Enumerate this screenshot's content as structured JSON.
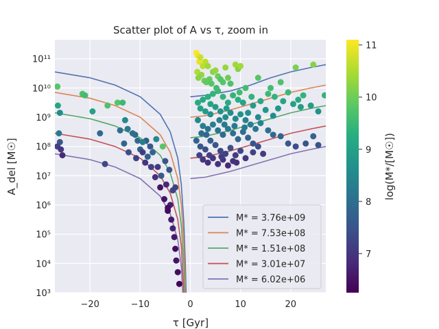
{
  "chart_data": {
    "type": "scatter",
    "title": "Scatter plot of A vs τ, zoom in",
    "xlabel": "τ [Gyr]",
    "ylabel": "A_del [M☉]",
    "xlim": [
      -27,
      27
    ],
    "ylim_log10": [
      3,
      11.65
    ],
    "yscale": "log",
    "grid": true,
    "x_ticks": [
      -20,
      -10,
      0,
      10,
      20
    ],
    "x_tick_labels": [
      "−20",
      "−10",
      "0",
      "10",
      "20"
    ],
    "y_ticks_log10": [
      3,
      4,
      5,
      6,
      7,
      8,
      9,
      10,
      11
    ],
    "y_tick_labels": [
      "10³",
      "10⁴",
      "10⁵",
      "10⁶",
      "10⁷",
      "10⁸",
      "10⁹",
      "10¹⁰",
      "10¹¹"
    ],
    "legend_position": "lower-right",
    "series": [
      {
        "name": "M* = 3.76e+09",
        "log_mass": 9.575,
        "color": "#4c72b0",
        "neg": [
          [
            -27,
            10.55
          ],
          [
            -20,
            10.35
          ],
          [
            -15,
            10.1
          ],
          [
            -10,
            9.7
          ],
          [
            -6,
            9.1
          ],
          [
            -4,
            8.5
          ],
          [
            -2.5,
            7.6
          ],
          [
            -1.8,
            6.7
          ],
          [
            -1.3,
            5.4
          ],
          [
            -1.0,
            4.0
          ],
          [
            -0.85,
            3.0
          ]
        ],
        "pos": [
          [
            0,
            9.7
          ],
          [
            3,
            9.75
          ],
          [
            8,
            9.9
          ],
          [
            12,
            10.1
          ],
          [
            16,
            10.35
          ],
          [
            20,
            10.55
          ],
          [
            24,
            10.7
          ],
          [
            27,
            10.8
          ]
        ]
      },
      {
        "name": "M* = 7.53e+08",
        "log_mass": 8.877,
        "color": "#dd8452",
        "neg": [
          [
            -27,
            9.85
          ],
          [
            -20,
            9.65
          ],
          [
            -15,
            9.4
          ],
          [
            -10,
            9.0
          ],
          [
            -6,
            8.4
          ],
          [
            -4,
            7.8
          ],
          [
            -2.5,
            6.9
          ],
          [
            -1.8,
            6.0
          ],
          [
            -1.3,
            4.7
          ],
          [
            -1.0,
            3.4
          ],
          [
            -0.95,
            3.0
          ]
        ],
        "pos": [
          [
            0,
            9.0
          ],
          [
            3,
            9.05
          ],
          [
            8,
            9.25
          ],
          [
            12,
            9.45
          ],
          [
            16,
            9.65
          ],
          [
            20,
            9.85
          ],
          [
            24,
            10.0
          ],
          [
            27,
            10.1
          ]
        ]
      },
      {
        "name": "M* = 1.51e+08",
        "log_mass": 8.179,
        "color": "#55a868",
        "neg": [
          [
            -27,
            9.15
          ],
          [
            -20,
            8.95
          ],
          [
            -15,
            8.7
          ],
          [
            -10,
            8.3
          ],
          [
            -6,
            7.7
          ],
          [
            -4,
            7.1
          ],
          [
            -2.5,
            6.2
          ],
          [
            -1.8,
            5.3
          ],
          [
            -1.3,
            4.0
          ],
          [
            -1.05,
            3.0
          ]
        ],
        "pos": [
          [
            0,
            8.3
          ],
          [
            3,
            8.35
          ],
          [
            8,
            8.55
          ],
          [
            12,
            8.75
          ],
          [
            16,
            8.95
          ],
          [
            20,
            9.15
          ],
          [
            24,
            9.3
          ],
          [
            27,
            9.4
          ]
        ]
      },
      {
        "name": "M* = 3.01e+07",
        "log_mass": 7.479,
        "color": "#c44e52",
        "neg": [
          [
            -27,
            8.45
          ],
          [
            -20,
            8.25
          ],
          [
            -15,
            8.0
          ],
          [
            -10,
            7.6
          ],
          [
            -6,
            7.0
          ],
          [
            -4,
            6.4
          ],
          [
            -2.5,
            5.5
          ],
          [
            -1.8,
            4.6
          ],
          [
            -1.4,
            3.4
          ],
          [
            -1.3,
            3.0
          ]
        ],
        "pos": [
          [
            0,
            7.6
          ],
          [
            3,
            7.65
          ],
          [
            8,
            7.85
          ],
          [
            12,
            8.05
          ],
          [
            16,
            8.25
          ],
          [
            20,
            8.45
          ],
          [
            24,
            8.6
          ],
          [
            27,
            8.7
          ]
        ]
      },
      {
        "name": "M* = 6.02e+06",
        "log_mass": 6.78,
        "color": "#8172b3",
        "neg": [
          [
            -27,
            7.75
          ],
          [
            -20,
            7.55
          ],
          [
            -15,
            7.3
          ],
          [
            -10,
            6.9
          ],
          [
            -6,
            6.3
          ],
          [
            -4,
            5.7
          ],
          [
            -2.5,
            4.8
          ],
          [
            -1.8,
            3.9
          ],
          [
            -1.5,
            3.0
          ]
        ],
        "pos": [
          [
            0,
            6.9
          ],
          [
            3,
            6.95
          ],
          [
            8,
            7.15
          ],
          [
            12,
            7.35
          ],
          [
            16,
            7.55
          ],
          [
            20,
            7.75
          ],
          [
            24,
            7.9
          ],
          [
            27,
            8.0
          ]
        ]
      }
    ],
    "colorbar": {
      "label": "log(M*/[M☉])",
      "range": [
        6.25,
        11.1
      ],
      "ticks": [
        7,
        8,
        9,
        10,
        11
      ],
      "tick_labels": [
        "7",
        "8",
        "9",
        "10",
        "11"
      ]
    },
    "points_legend": "each point: [τ (Gyr), log10(A_del / M☉), log10(M* / M☉)]",
    "points": [
      [
        -26.5,
        10.05,
        9.8
      ],
      [
        -26.4,
        9.4,
        9.1
      ],
      [
        -26.0,
        9.15,
        8.6
      ],
      [
        -26.2,
        8.45,
        8.2
      ],
      [
        -26.0,
        8.15,
        7.6
      ],
      [
        -26.5,
        8.0,
        7.2
      ],
      [
        -25.8,
        7.9,
        7.0
      ],
      [
        -25.5,
        7.7,
        6.8
      ],
      [
        -21.5,
        9.8,
        9.7
      ],
      [
        -21.0,
        9.75,
        9.6
      ],
      [
        -19.5,
        9.2,
        9.0
      ],
      [
        -18.0,
        8.45,
        7.9
      ],
      [
        -17.0,
        7.4,
        7.3
      ],
      [
        -16.5,
        9.4,
        9.7
      ],
      [
        -14.5,
        9.5,
        9.8
      ],
      [
        -14.0,
        8.55,
        8.0
      ],
      [
        -13.5,
        9.5,
        9.5
      ],
      [
        -13.0,
        8.9,
        8.5
      ],
      [
        -13.2,
        8.1,
        7.8
      ],
      [
        -12.5,
        8.6,
        8.2
      ],
      [
        -12.3,
        7.8,
        7.4
      ],
      [
        -11.0,
        8.4,
        7.9
      ],
      [
        -10.8,
        7.6,
        7.2
      ],
      [
        -10.5,
        8.2,
        7.9
      ],
      [
        -10.0,
        7.9,
        7.7
      ],
      [
        -9.5,
        7.8,
        7.1
      ],
      [
        -9.0,
        7.45,
        7.0
      ],
      [
        -8.8,
        8.2,
        7.6
      ],
      [
        -8.5,
        7.65,
        7.7
      ],
      [
        -8.0,
        8.0,
        7.6
      ],
      [
        -7.5,
        7.8,
        7.8
      ],
      [
        -7.0,
        6.95,
        6.9
      ],
      [
        -6.5,
        7.3,
        7.0
      ],
      [
        -6.0,
        6.6,
        6.5
      ],
      [
        -5.5,
        8.0,
        9.8
      ],
      [
        -5.0,
        7.5,
        7.5
      ],
      [
        -5.2,
        6.2,
        6.5
      ],
      [
        -4.8,
        6.7,
        6.8
      ],
      [
        -4.5,
        5.8,
        6.4
      ],
      [
        -4.0,
        6.0,
        6.7
      ],
      [
        -3.8,
        5.5,
        6.6
      ],
      [
        -3.5,
        5.2,
        6.7
      ],
      [
        -3.2,
        4.9,
        6.6
      ],
      [
        -3.0,
        4.5,
        6.4
      ],
      [
        -2.8,
        4.1,
        6.5
      ],
      [
        -2.5,
        3.7,
        6.4
      ],
      [
        -3.5,
        6.5,
        7.2
      ],
      [
        -6.8,
        8.25,
        8.5
      ],
      [
        -7.8,
        7.3,
        7.2
      ],
      [
        -5.8,
        7.0,
        7.6
      ],
      [
        -9.5,
        8.15,
        8.3
      ],
      [
        -4.2,
        7.2,
        7.5
      ],
      [
        -2.2,
        3.3,
        6.3
      ],
      [
        -3.0,
        6.6,
        7.2
      ],
      [
        -4.5,
        5.9,
        6.4
      ],
      [
        -11.5,
        8.45,
        8.0
      ],
      [
        1.2,
        11.2,
        11.1
      ],
      [
        1.5,
        11.1,
        11.0
      ],
      [
        1.8,
        10.9,
        10.9
      ],
      [
        2.0,
        11.05,
        10.7
      ],
      [
        2.5,
        10.75,
        10.6
      ],
      [
        1.4,
        10.55,
        10.5
      ],
      [
        2.2,
        10.45,
        10.3
      ],
      [
        3.0,
        10.9,
        10.6
      ],
      [
        3.5,
        10.75,
        10.4
      ],
      [
        1.6,
        10.35,
        10.2
      ],
      [
        2.8,
        10.25,
        10.0
      ],
      [
        3.2,
        10.2,
        9.9
      ],
      [
        3.8,
        10.3,
        9.9
      ],
      [
        4.2,
        10.15,
        9.8
      ],
      [
        4.5,
        10.55,
        10.2
      ],
      [
        5.0,
        10.6,
        10.3
      ],
      [
        5.5,
        10.4,
        10.0
      ],
      [
        6.0,
        10.3,
        9.8
      ],
      [
        6.5,
        10.2,
        9.8
      ],
      [
        7.0,
        10.7,
        10.3
      ],
      [
        7.5,
        10.35,
        10.0
      ],
      [
        8.0,
        10.15,
        9.7
      ],
      [
        9.0,
        10.8,
        10.4
      ],
      [
        9.5,
        10.65,
        10.2
      ],
      [
        10.0,
        10.75,
        10.4
      ],
      [
        13.5,
        10.35,
        9.8
      ],
      [
        16.0,
        10.0,
        9.6
      ],
      [
        18.0,
        10.2,
        9.7
      ],
      [
        21.0,
        10.7,
        10.1
      ],
      [
        24.5,
        10.8,
        10.2
      ],
      [
        20.5,
        9.45,
        9.0
      ],
      [
        22.0,
        9.35,
        8.9
      ],
      [
        24.0,
        9.4,
        8.9
      ],
      [
        25.5,
        9.2,
        8.7
      ],
      [
        26.8,
        9.75,
        9.4
      ],
      [
        18.5,
        9.55,
        9.1
      ],
      [
        17.5,
        9.3,
        8.8
      ],
      [
        16.5,
        9.05,
        8.6
      ],
      [
        15.0,
        9.25,
        8.8
      ],
      [
        13.5,
        9.0,
        8.5
      ],
      [
        12.5,
        9.4,
        8.9
      ],
      [
        11.5,
        9.15,
        8.7
      ],
      [
        10.5,
        9.5,
        9.1
      ],
      [
        9.5,
        9.6,
        9.3
      ],
      [
        8.5,
        9.75,
        9.4
      ],
      [
        7.5,
        9.5,
        9.2
      ],
      [
        6.5,
        9.7,
        9.4
      ],
      [
        5.5,
        9.9,
        9.5
      ],
      [
        4.5,
        9.8,
        9.4
      ],
      [
        3.5,
        9.7,
        9.3
      ],
      [
        2.5,
        9.6,
        9.2
      ],
      [
        1.5,
        9.5,
        9.2
      ],
      [
        2.0,
        9.3,
        9.0
      ],
      [
        3.0,
        9.2,
        8.9
      ],
      [
        4.0,
        9.1,
        8.7
      ],
      [
        5.0,
        9.35,
        8.9
      ],
      [
        6.0,
        9.2,
        8.7
      ],
      [
        7.0,
        9.0,
        8.6
      ],
      [
        8.0,
        9.15,
        8.6
      ],
      [
        9.0,
        8.95,
        8.5
      ],
      [
        10.0,
        9.1,
        8.7
      ],
      [
        11.0,
        8.9,
        8.4
      ],
      [
        12.0,
        8.75,
        8.3
      ],
      [
        13.0,
        8.6,
        8.1
      ],
      [
        14.0,
        8.8,
        8.4
      ],
      [
        15.5,
        8.55,
        8.0
      ],
      [
        16.5,
        8.4,
        7.9
      ],
      [
        18.0,
        8.35,
        7.8
      ],
      [
        19.5,
        8.1,
        7.6
      ],
      [
        21.0,
        8.0,
        7.4
      ],
      [
        23.0,
        8.1,
        7.5
      ],
      [
        24.5,
        8.35,
        7.8
      ],
      [
        25.5,
        8.05,
        7.5
      ],
      [
        1.5,
        8.9,
        8.5
      ],
      [
        2.5,
        8.7,
        8.3
      ],
      [
        3.5,
        8.6,
        8.1
      ],
      [
        4.5,
        8.75,
        8.3
      ],
      [
        5.5,
        8.55,
        8.1
      ],
      [
        6.5,
        8.4,
        7.9
      ],
      [
        7.5,
        8.6,
        8.2
      ],
      [
        8.5,
        8.45,
        8.0
      ],
      [
        9.5,
        8.25,
        7.8
      ],
      [
        10.5,
        8.5,
        8.0
      ],
      [
        11.5,
        8.3,
        7.8
      ],
      [
        12.5,
        8.1,
        7.5
      ],
      [
        13.5,
        8.0,
        7.4
      ],
      [
        1.2,
        8.2,
        7.8
      ],
      [
        2.0,
        8.0,
        7.6
      ],
      [
        3.0,
        7.9,
        7.4
      ],
      [
        4.0,
        8.2,
        7.7
      ],
      [
        5.0,
        8.05,
        7.5
      ],
      [
        6.0,
        7.85,
        7.3
      ],
      [
        7.0,
        7.75,
        7.2
      ],
      [
        8.0,
        7.95,
        7.4
      ],
      [
        9.0,
        7.7,
        7.1
      ],
      [
        10.0,
        7.85,
        7.3
      ],
      [
        11.0,
        7.6,
        7.0
      ],
      [
        12.5,
        7.8,
        7.2
      ],
      [
        14.5,
        7.75,
        7.1
      ],
      [
        2.5,
        7.55,
        7.0
      ],
      [
        3.5,
        7.45,
        6.9
      ],
      [
        4.5,
        7.6,
        7.0
      ],
      [
        5.5,
        7.4,
        6.9
      ],
      [
        6.5,
        7.55,
        7.0
      ],
      [
        7.5,
        7.35,
        6.8
      ],
      [
        8.5,
        7.5,
        6.9
      ],
      [
        1.8,
        7.7,
        7.2
      ],
      [
        3.2,
        8.4,
        7.9
      ],
      [
        5.8,
        8.9,
        8.4
      ],
      [
        7.2,
        9.3,
        8.9
      ],
      [
        9.8,
        9.85,
        9.6
      ],
      [
        12.2,
        9.7,
        9.4
      ],
      [
        14.0,
        9.55,
        9.2
      ],
      [
        15.5,
        9.8,
        9.5
      ],
      [
        16.8,
        9.7,
        9.4
      ],
      [
        19.5,
        9.85,
        9.5
      ],
      [
        21.5,
        9.6,
        9.2
      ],
      [
        22.5,
        9.75,
        9.4
      ],
      [
        11.0,
        10.0,
        9.6
      ],
      [
        5.2,
        10.0,
        9.6
      ],
      [
        4.0,
        9.45,
        9.1
      ],
      [
        6.8,
        8.75,
        8.2
      ],
      [
        8.8,
        8.7,
        8.2
      ],
      [
        10.8,
        8.65,
        8.2
      ],
      [
        2.2,
        8.45,
        8.0
      ],
      [
        3.8,
        7.7,
        7.2
      ],
      [
        6.2,
        7.65,
        7.1
      ],
      [
        9.2,
        7.45,
        6.9
      ]
    ]
  }
}
